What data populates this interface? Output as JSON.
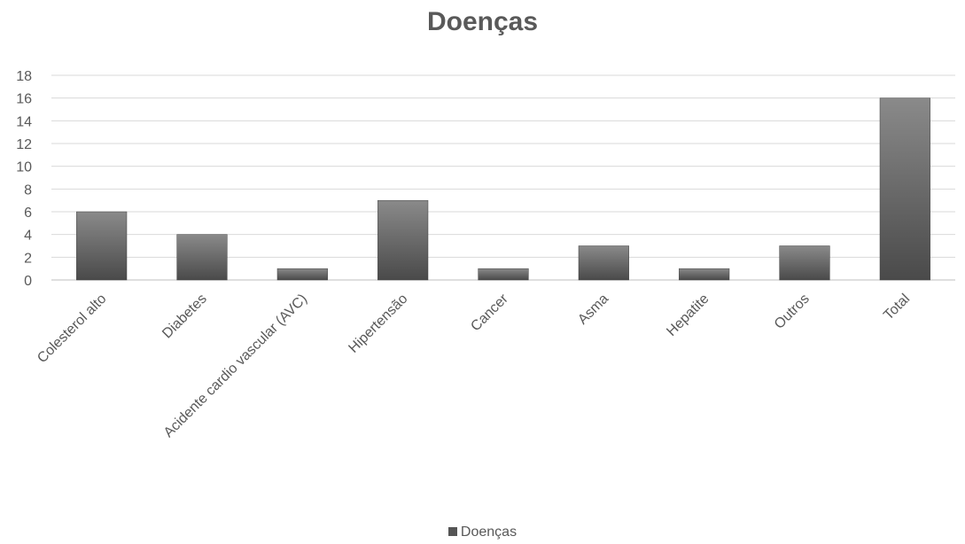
{
  "chart_data": {
    "type": "bar",
    "title": "Doenças",
    "categories": [
      "Colesterol alto",
      "Diabetes",
      "Acidente cardio vascular (AVC)",
      "Hipertensão",
      "Cancer",
      "Asma",
      "Hepatite",
      "Outros",
      "Total"
    ],
    "series": [
      {
        "name": "Doenças",
        "values": [
          6,
          4,
          1,
          7,
          1,
          3,
          1,
          3,
          16
        ]
      }
    ],
    "xlabel": "",
    "ylabel": "",
    "ylim": [
      0,
      18
    ],
    "yticks": [
      0,
      2,
      4,
      6,
      8,
      10,
      12,
      14,
      16,
      18
    ],
    "grid": true,
    "legend": "bottom",
    "colors": {
      "bar": "#555555",
      "bar_light": "#8a8a8a",
      "grid": "#d9d9d9",
      "text": "#595959"
    }
  }
}
